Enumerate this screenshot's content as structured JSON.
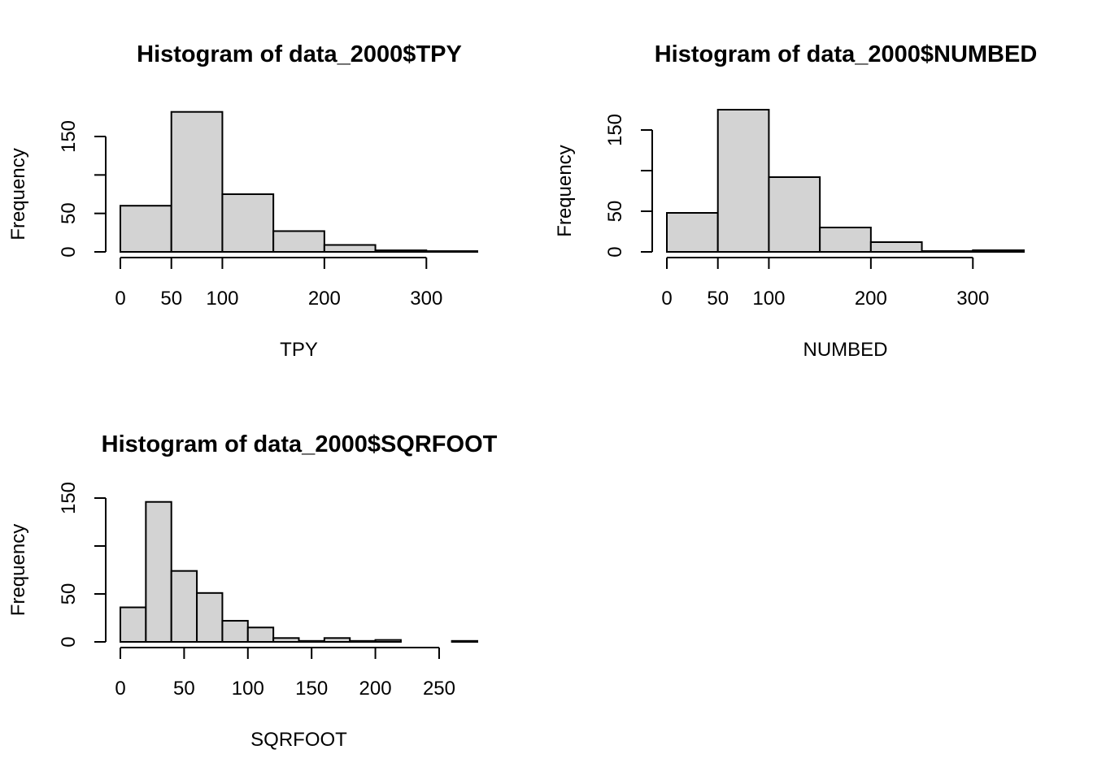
{
  "chart_data": [
    {
      "type": "bar",
      "title": "Histogram of data_2000$TPY",
      "xlabel": "TPY",
      "ylabel": "Frequency",
      "bins": [
        [
          0,
          50
        ],
        [
          50,
          100
        ],
        [
          100,
          150
        ],
        [
          150,
          200
        ],
        [
          200,
          250
        ],
        [
          250,
          300
        ],
        [
          300,
          350
        ]
      ],
      "values": [
        60,
        182,
        75,
        27,
        9,
        2,
        1
      ],
      "xticks": [
        0,
        50,
        100,
        200,
        300
      ],
      "yticks": [
        0,
        50,
        100,
        150
      ],
      "ytick_labels": [
        "0",
        "50",
        "",
        "150"
      ],
      "xlim": [
        0,
        350
      ],
      "ylim": [
        0,
        150
      ],
      "bar_color": "#d3d3d3"
    },
    {
      "type": "bar",
      "title": "Histogram of data_2000$NUMBED",
      "xlabel": "NUMBED",
      "ylabel": "Frequency",
      "bins": [
        [
          0,
          50
        ],
        [
          50,
          100
        ],
        [
          100,
          150
        ],
        [
          150,
          200
        ],
        [
          200,
          250
        ],
        [
          250,
          300
        ],
        [
          300,
          350
        ]
      ],
      "values": [
        48,
        175,
        92,
        30,
        12,
        1,
        2
      ],
      "xticks": [
        0,
        50,
        100,
        200,
        300
      ],
      "yticks": [
        0,
        50,
        100,
        150
      ],
      "ytick_labels": [
        "0",
        "50",
        "",
        "150"
      ],
      "xlim": [
        0,
        350
      ],
      "ylim": [
        0,
        150
      ],
      "bar_color": "#d3d3d3"
    },
    {
      "type": "bar",
      "title": "Histogram of data_2000$SQRFOOT",
      "xlabel": "SQRFOOT",
      "ylabel": "Frequency",
      "bins": [
        [
          0,
          20
        ],
        [
          20,
          40
        ],
        [
          40,
          60
        ],
        [
          60,
          80
        ],
        [
          80,
          100
        ],
        [
          100,
          120
        ],
        [
          120,
          140
        ],
        [
          140,
          160
        ],
        [
          160,
          180
        ],
        [
          180,
          200
        ],
        [
          200,
          220
        ],
        [
          220,
          240
        ],
        [
          240,
          260
        ],
        [
          260,
          280
        ]
      ],
      "values": [
        36,
        146,
        74,
        51,
        22,
        15,
        4,
        1,
        4,
        1,
        2,
        0,
        0,
        1
      ],
      "xticks": [
        0,
        50,
        100,
        150,
        200,
        250
      ],
      "yticks": [
        0,
        50,
        100,
        150
      ],
      "ytick_labels": [
        "0",
        "50",
        "",
        "150"
      ],
      "xlim": [
        0,
        280
      ],
      "ylim": [
        0,
        150
      ],
      "bar_color": "#d3d3d3"
    }
  ]
}
